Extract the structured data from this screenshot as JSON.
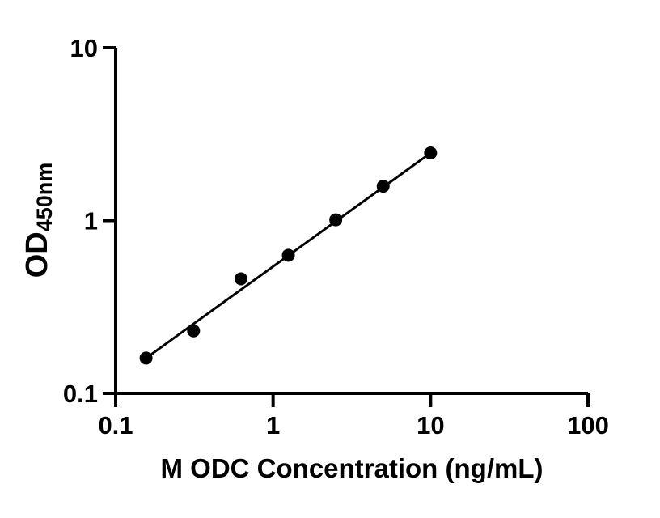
{
  "figure": {
    "background_color": "#ffffff",
    "axis_color": "#000000",
    "marker_color": "#000000",
    "trend_line_color": "#000000"
  },
  "chart_data": {
    "type": "scatter",
    "title": "",
    "xlabel": "M ODC Concentration (ng/mL)",
    "ylabel": "OD",
    "ylabel_subscript": "450nm",
    "x_scale": "log",
    "y_scale": "log",
    "xlim": [
      0.1,
      100
    ],
    "ylim": [
      0.1,
      10
    ],
    "grid": false,
    "legend": null,
    "x_ticks": [
      {
        "value": 0.1,
        "label": "0.1"
      },
      {
        "value": 1,
        "label": "1"
      },
      {
        "value": 10,
        "label": "10"
      },
      {
        "value": 100,
        "label": "100"
      }
    ],
    "y_ticks": [
      {
        "value": 0.1,
        "label": "0.1"
      },
      {
        "value": 1,
        "label": "1"
      },
      {
        "value": 10,
        "label": "10"
      }
    ],
    "points": [
      {
        "x": 0.156,
        "y": 0.16
      },
      {
        "x": 0.3125,
        "y": 0.23
      },
      {
        "x": 0.625,
        "y": 0.46
      },
      {
        "x": 1.25,
        "y": 0.63
      },
      {
        "x": 2.5,
        "y": 1.01
      },
      {
        "x": 5,
        "y": 1.58
      },
      {
        "x": 10,
        "y": 2.46
      }
    ],
    "trend_line": {
      "type": "linear-loglog",
      "from_x": 0.156,
      "to_x": 10
    }
  }
}
